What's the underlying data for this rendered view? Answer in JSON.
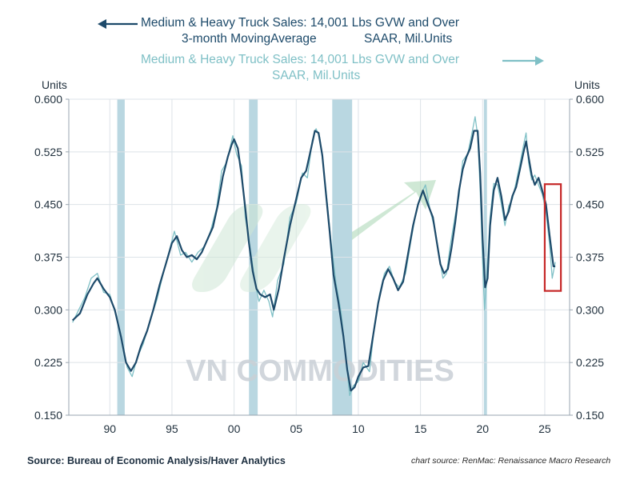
{
  "chart_data": {
    "type": "line",
    "title": "Medium & Heavy Truck Sales: 14,001 Lbs GVW and Over",
    "series": [
      {
        "name": "Medium & Heavy Truck Sales: 14,001 Lbs GVW and Over 3-month MovingAverage SAAR, Mil.Units",
        "axis": "left",
        "color": "#1d4a6a",
        "legend_line1": "Medium & Heavy Truck Sales: 14,001 Lbs GVW and Over",
        "legend_line2a": "3-month MovingAverage",
        "legend_line2b": "SAAR, Mil.Units",
        "points": [
          [
            1987.0,
            0.285
          ],
          [
            1987.6,
            0.295
          ],
          [
            1988.2,
            0.322
          ],
          [
            1988.7,
            0.338
          ],
          [
            1989.0,
            0.345
          ],
          [
            1989.5,
            0.33
          ],
          [
            1990.0,
            0.318
          ],
          [
            1990.4,
            0.3
          ],
          [
            1990.9,
            0.262
          ],
          [
            1991.3,
            0.225
          ],
          [
            1991.7,
            0.213
          ],
          [
            1992.1,
            0.225
          ],
          [
            1992.5,
            0.248
          ],
          [
            1993.0,
            0.27
          ],
          [
            1993.5,
            0.3
          ],
          [
            1994.0,
            0.335
          ],
          [
            1994.5,
            0.365
          ],
          [
            1995.0,
            0.395
          ],
          [
            1995.4,
            0.405
          ],
          [
            1995.8,
            0.385
          ],
          [
            1996.2,
            0.375
          ],
          [
            1996.6,
            0.378
          ],
          [
            1997.0,
            0.372
          ],
          [
            1997.4,
            0.382
          ],
          [
            1997.8,
            0.398
          ],
          [
            1998.3,
            0.418
          ],
          [
            1998.7,
            0.45
          ],
          [
            1999.1,
            0.49
          ],
          [
            1999.5,
            0.518
          ],
          [
            1999.8,
            0.535
          ],
          [
            2000.0,
            0.543
          ],
          [
            2000.3,
            0.53
          ],
          [
            2000.6,
            0.492
          ],
          [
            2000.9,
            0.445
          ],
          [
            2001.2,
            0.395
          ],
          [
            2001.5,
            0.355
          ],
          [
            2001.8,
            0.33
          ],
          [
            2002.1,
            0.322
          ],
          [
            2002.5,
            0.318
          ],
          [
            2002.9,
            0.322
          ],
          [
            2003.2,
            0.3
          ],
          [
            2003.6,
            0.33
          ],
          [
            2004.0,
            0.372
          ],
          [
            2004.5,
            0.42
          ],
          [
            2005.0,
            0.458
          ],
          [
            2005.4,
            0.488
          ],
          [
            2005.8,
            0.498
          ],
          [
            2006.2,
            0.53
          ],
          [
            2006.5,
            0.555
          ],
          [
            2006.8,
            0.552
          ],
          [
            2007.1,
            0.52
          ],
          [
            2007.4,
            0.465
          ],
          [
            2007.7,
            0.41
          ],
          [
            2008.0,
            0.35
          ],
          [
            2008.4,
            0.31
          ],
          [
            2008.8,
            0.262
          ],
          [
            2009.1,
            0.215
          ],
          [
            2009.4,
            0.185
          ],
          [
            2009.7,
            0.19
          ],
          [
            2010.0,
            0.205
          ],
          [
            2010.4,
            0.218
          ],
          [
            2010.8,
            0.22
          ],
          [
            2011.2,
            0.265
          ],
          [
            2011.6,
            0.31
          ],
          [
            2012.0,
            0.342
          ],
          [
            2012.4,
            0.358
          ],
          [
            2012.8,
            0.345
          ],
          [
            2013.2,
            0.328
          ],
          [
            2013.6,
            0.34
          ],
          [
            2014.0,
            0.38
          ],
          [
            2014.4,
            0.42
          ],
          [
            2014.8,
            0.45
          ],
          [
            2015.2,
            0.47
          ],
          [
            2015.6,
            0.45
          ],
          [
            2016.0,
            0.432
          ],
          [
            2016.3,
            0.398
          ],
          [
            2016.6,
            0.365
          ],
          [
            2016.9,
            0.352
          ],
          [
            2017.2,
            0.358
          ],
          [
            2017.5,
            0.388
          ],
          [
            2017.8,
            0.425
          ],
          [
            2018.1,
            0.47
          ],
          [
            2018.4,
            0.5
          ],
          [
            2018.7,
            0.518
          ],
          [
            2019.0,
            0.53
          ],
          [
            2019.3,
            0.555
          ],
          [
            2019.6,
            0.555
          ],
          [
            2019.8,
            0.495
          ],
          [
            2020.0,
            0.4
          ],
          [
            2020.2,
            0.332
          ],
          [
            2020.4,
            0.345
          ],
          [
            2020.6,
            0.42
          ],
          [
            2020.9,
            0.47
          ],
          [
            2021.2,
            0.488
          ],
          [
            2021.5,
            0.462
          ],
          [
            2021.8,
            0.428
          ],
          [
            2022.1,
            0.44
          ],
          [
            2022.4,
            0.462
          ],
          [
            2022.7,
            0.475
          ],
          [
            2023.0,
            0.5
          ],
          [
            2023.3,
            0.525
          ],
          [
            2023.5,
            0.54
          ],
          [
            2023.7,
            0.518
          ],
          [
            2023.95,
            0.492
          ],
          [
            2024.2,
            0.478
          ],
          [
            2024.5,
            0.488
          ],
          [
            2024.8,
            0.47
          ],
          [
            2025.1,
            0.45
          ],
          [
            2025.4,
            0.405
          ],
          [
            2025.7,
            0.362
          ],
          [
            2025.85,
            0.362
          ]
        ]
      },
      {
        "name": "Medium & Heavy Truck Sales: 14,001 Lbs GVW and Over SAAR, Mil.Units",
        "axis": "right",
        "color": "#7fc0c6",
        "legend_line1": "Medium & Heavy Truck Sales: 14,001 Lbs GVW and Over",
        "legend_line2": "SAAR, Mil.Units",
        "points": [
          [
            1987.0,
            0.282
          ],
          [
            1987.5,
            0.3
          ],
          [
            1988.0,
            0.318
          ],
          [
            1988.5,
            0.345
          ],
          [
            1989.0,
            0.352
          ],
          [
            1989.5,
            0.325
          ],
          [
            1990.0,
            0.322
          ],
          [
            1990.5,
            0.292
          ],
          [
            1991.0,
            0.255
          ],
          [
            1991.4,
            0.218
          ],
          [
            1991.8,
            0.205
          ],
          [
            1992.2,
            0.232
          ],
          [
            1992.7,
            0.252
          ],
          [
            1993.2,
            0.282
          ],
          [
            1993.8,
            0.315
          ],
          [
            1994.3,
            0.352
          ],
          [
            1994.8,
            0.385
          ],
          [
            1995.2,
            0.412
          ],
          [
            1995.7,
            0.378
          ],
          [
            1996.1,
            0.382
          ],
          [
            1996.6,
            0.368
          ],
          [
            1997.1,
            0.382
          ],
          [
            1997.6,
            0.39
          ],
          [
            1998.1,
            0.412
          ],
          [
            1998.6,
            0.445
          ],
          [
            1999.0,
            0.498
          ],
          [
            1999.4,
            0.51
          ],
          [
            1999.9,
            0.548
          ],
          [
            2000.2,
            0.522
          ],
          [
            2000.6,
            0.505
          ],
          [
            2000.9,
            0.432
          ],
          [
            2001.3,
            0.388
          ],
          [
            2001.7,
            0.338
          ],
          [
            2002.0,
            0.312
          ],
          [
            2002.4,
            0.328
          ],
          [
            2002.8,
            0.312
          ],
          [
            2003.1,
            0.29
          ],
          [
            2003.5,
            0.342
          ],
          [
            2004.0,
            0.365
          ],
          [
            2004.5,
            0.432
          ],
          [
            2005.0,
            0.452
          ],
          [
            2005.5,
            0.495
          ],
          [
            2005.9,
            0.488
          ],
          [
            2006.3,
            0.542
          ],
          [
            2006.6,
            0.558
          ],
          [
            2006.9,
            0.545
          ],
          [
            2007.2,
            0.502
          ],
          [
            2007.5,
            0.452
          ],
          [
            2007.8,
            0.398
          ],
          [
            2008.2,
            0.338
          ],
          [
            2008.6,
            0.298
          ],
          [
            2009.0,
            0.232
          ],
          [
            2009.3,
            0.178
          ],
          [
            2009.6,
            0.192
          ],
          [
            2010.0,
            0.198
          ],
          [
            2010.4,
            0.225
          ],
          [
            2010.9,
            0.212
          ],
          [
            2011.3,
            0.278
          ],
          [
            2011.7,
            0.322
          ],
          [
            2012.1,
            0.352
          ],
          [
            2012.5,
            0.362
          ],
          [
            2012.9,
            0.34
          ],
          [
            2013.3,
            0.332
          ],
          [
            2013.8,
            0.352
          ],
          [
            2014.2,
            0.395
          ],
          [
            2014.6,
            0.435
          ],
          [
            2015.0,
            0.462
          ],
          [
            2015.4,
            0.478
          ],
          [
            2015.8,
            0.44
          ],
          [
            2016.2,
            0.412
          ],
          [
            2016.5,
            0.378
          ],
          [
            2016.8,
            0.345
          ],
          [
            2017.1,
            0.352
          ],
          [
            2017.4,
            0.392
          ],
          [
            2017.8,
            0.435
          ],
          [
            2018.1,
            0.462
          ],
          [
            2018.4,
            0.512
          ],
          [
            2018.8,
            0.522
          ],
          [
            2019.1,
            0.548
          ],
          [
            2019.4,
            0.575
          ],
          [
            2019.6,
            0.548
          ],
          [
            2019.8,
            0.472
          ],
          [
            2020.0,
            0.368
          ],
          [
            2020.15,
            0.3
          ],
          [
            2020.35,
            0.352
          ],
          [
            2020.6,
            0.432
          ],
          [
            2020.9,
            0.48
          ],
          [
            2021.2,
            0.478
          ],
          [
            2021.5,
            0.452
          ],
          [
            2021.8,
            0.42
          ],
          [
            2022.1,
            0.448
          ],
          [
            2022.4,
            0.458
          ],
          [
            2022.7,
            0.482
          ],
          [
            2023.0,
            0.508
          ],
          [
            2023.3,
            0.535
          ],
          [
            2023.5,
            0.552
          ],
          [
            2023.7,
            0.51
          ],
          [
            2023.95,
            0.485
          ],
          [
            2024.2,
            0.492
          ],
          [
            2024.5,
            0.478
          ],
          [
            2024.8,
            0.465
          ],
          [
            2025.1,
            0.44
          ],
          [
            2025.4,
            0.392
          ],
          [
            2025.6,
            0.345
          ],
          [
            2025.85,
            0.368
          ]
        ]
      }
    ],
    "x_axis": {
      "range": [
        1986.7,
        2027.0
      ],
      "ticks": [
        1990,
        1995,
        2000,
        2005,
        2010,
        2015,
        2020,
        2025
      ],
      "tick_labels": [
        "90",
        "95",
        "00",
        "05",
        "10",
        "15",
        "20",
        "25"
      ]
    },
    "y_axis_left": {
      "label": "Units",
      "range": [
        0.15,
        0.6
      ],
      "ticks": [
        0.15,
        0.225,
        0.3,
        0.375,
        0.45,
        0.525,
        0.6
      ],
      "tick_labels": [
        "0.150",
        "0.225",
        "0.300",
        "0.375",
        "0.450",
        "0.525",
        "0.600"
      ]
    },
    "y_axis_right": {
      "label": "Units",
      "range": [
        0.15,
        0.6
      ],
      "ticks": [
        0.15,
        0.225,
        0.3,
        0.375,
        0.45,
        0.525,
        0.6
      ],
      "tick_labels": [
        "0.150",
        "0.225",
        "0.300",
        "0.375",
        "0.450",
        "0.525",
        "0.600"
      ]
    },
    "recessions": [
      [
        1990.6,
        1991.2
      ],
      [
        2001.2,
        2001.9
      ],
      [
        2007.9,
        2009.5
      ],
      [
        2020.1,
        2020.35
      ]
    ],
    "highlight_box": {
      "x_range": [
        2025.0,
        2026.3
      ],
      "y_range": [
        0.327,
        0.479
      ],
      "color": "#c62828"
    },
    "watermark": "VN COMMODITIES",
    "colors": {
      "recession": "#b9d7e1",
      "grid": "#dde3e8",
      "axis_text": "#1f2f3c"
    }
  },
  "footer": {
    "source": "Source:  Bureau of Economic Analysis/Haver Analytics",
    "chart_source": "chart source: RenMac: Renaissance Macro Research"
  }
}
